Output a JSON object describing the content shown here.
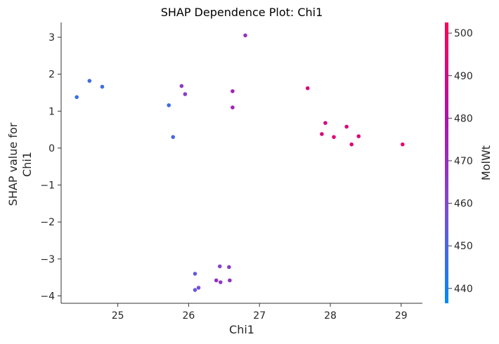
{
  "chart_data": {
    "type": "scatter",
    "title": "SHAP Dependence Plot: Chi1",
    "xlabel": "Chi1",
    "ylabel_lines": [
      "SHAP value for",
      "Chi1"
    ],
    "colorbar_label": "MolWt",
    "xlim": [
      24.2,
      29.3
    ],
    "ylim": [
      -4.2,
      3.4
    ],
    "x_ticks": [
      25,
      26,
      27,
      28,
      29
    ],
    "y_ticks": [
      3,
      2,
      1,
      0,
      -1,
      -2,
      -3,
      -4
    ],
    "y_tick_labels": [
      "3",
      "2",
      "1",
      "0",
      "−1",
      "−2",
      "−3",
      "−4"
    ],
    "color_range": [
      436.5,
      502.5
    ],
    "color_ticks": [
      440,
      450,
      460,
      470,
      480,
      490,
      500
    ],
    "colormap": [
      "#008afb",
      "#7a4fd3",
      "#b013a8",
      "#ff0052"
    ],
    "points": [
      {
        "x": 24.42,
        "y": 1.38,
        "c": 447
      },
      {
        "x": 24.6,
        "y": 1.82,
        "c": 448
      },
      {
        "x": 24.78,
        "y": 1.66,
        "c": 448
      },
      {
        "x": 25.72,
        "y": 1.16,
        "c": 448
      },
      {
        "x": 25.78,
        "y": 0.3,
        "c": 449
      },
      {
        "x": 25.9,
        "y": 1.68,
        "c": 467
      },
      {
        "x": 25.95,
        "y": 1.46,
        "c": 465
      },
      {
        "x": 26.62,
        "y": 1.54,
        "c": 475
      },
      {
        "x": 26.62,
        "y": 1.1,
        "c": 475
      },
      {
        "x": 26.8,
        "y": 3.05,
        "c": 470
      },
      {
        "x": 27.68,
        "y": 1.62,
        "c": 490
      },
      {
        "x": 27.88,
        "y": 0.38,
        "c": 492
      },
      {
        "x": 27.93,
        "y": 0.68,
        "c": 490
      },
      {
        "x": 28.05,
        "y": 0.3,
        "c": 494
      },
      {
        "x": 28.23,
        "y": 0.58,
        "c": 492
      },
      {
        "x": 28.3,
        "y": 0.1,
        "c": 494
      },
      {
        "x": 28.4,
        "y": 0.32,
        "c": 492
      },
      {
        "x": 29.02,
        "y": 0.1,
        "c": 496
      },
      {
        "x": 26.09,
        "y": -3.4,
        "c": 454
      },
      {
        "x": 26.09,
        "y": -3.84,
        "c": 455
      },
      {
        "x": 26.14,
        "y": -3.78,
        "c": 458
      },
      {
        "x": 26.39,
        "y": -3.58,
        "c": 470
      },
      {
        "x": 26.44,
        "y": -3.2,
        "c": 463
      },
      {
        "x": 26.45,
        "y": -3.63,
        "c": 466
      },
      {
        "x": 26.57,
        "y": -3.22,
        "c": 465
      },
      {
        "x": 26.58,
        "y": -3.58,
        "c": 468
      }
    ]
  }
}
